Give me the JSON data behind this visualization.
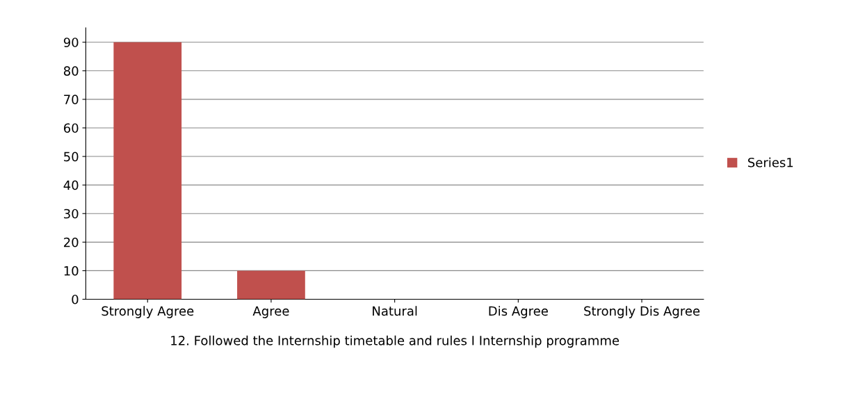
{
  "chart_data": {
    "type": "bar",
    "categories": [
      "Strongly Agree",
      "Agree",
      "Natural",
      "Dis Agree",
      "Strongly Dis Agree"
    ],
    "series": [
      {
        "name": "Series1",
        "color": "#c0504d",
        "values": [
          90,
          10,
          0,
          0,
          0
        ]
      }
    ],
    "xlabel": "12. Followed the Internship timetable and rules I Internship programme",
    "ylim": [
      0,
      95
    ],
    "yticks": [
      0,
      10,
      20,
      30,
      40,
      50,
      60,
      70,
      80,
      90
    ],
    "grid": "y",
    "legend": "right"
  }
}
